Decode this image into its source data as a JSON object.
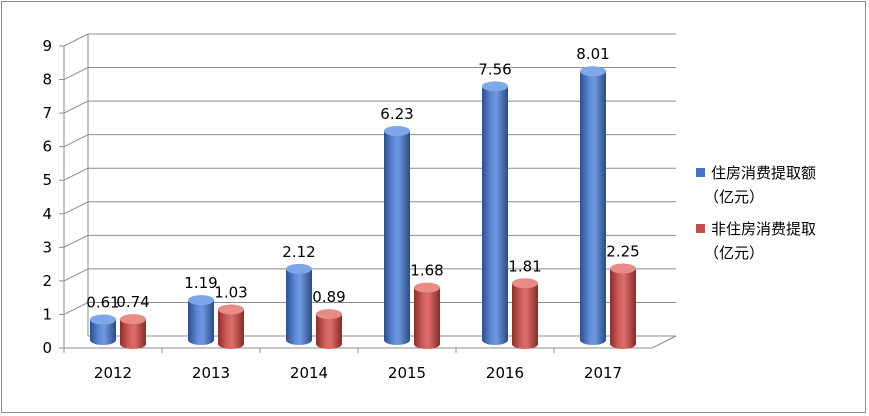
{
  "chart_data": {
    "type": "bar",
    "title": "",
    "xlabel": "",
    "ylabel": "",
    "categories": [
      "2012",
      "2013",
      "2014",
      "2015",
      "2016",
      "2017"
    ],
    "series": [
      {
        "name": "住房消费提取额（亿元）",
        "legend_lines": [
          "住房消费提取额",
          "（亿元）"
        ],
        "color": "#4472C4",
        "values": [
          0.61,
          1.19,
          2.12,
          6.23,
          7.56,
          8.01
        ],
        "labels": [
          "0.61",
          "1.19",
          "2.12",
          "6.23",
          "7.56",
          "8.01"
        ]
      },
      {
        "name": "非住房消费提取（亿元）",
        "legend_lines": [
          "非住房消费提取",
          "（亿元）"
        ],
        "color": "#C0504D",
        "values": [
          0.74,
          1.03,
          0.89,
          1.68,
          1.81,
          2.25
        ],
        "labels": [
          "0.74",
          "1.03",
          "0.89",
          "1.68",
          "1.81",
          "2.25"
        ]
      }
    ],
    "ylim": [
      0,
      9
    ],
    "yticks": [
      "0",
      "1",
      "2",
      "3",
      "4",
      "5",
      "6",
      "7",
      "8",
      "9"
    ],
    "grid": true,
    "legend_position": "right",
    "style": "3d-cylinder"
  }
}
